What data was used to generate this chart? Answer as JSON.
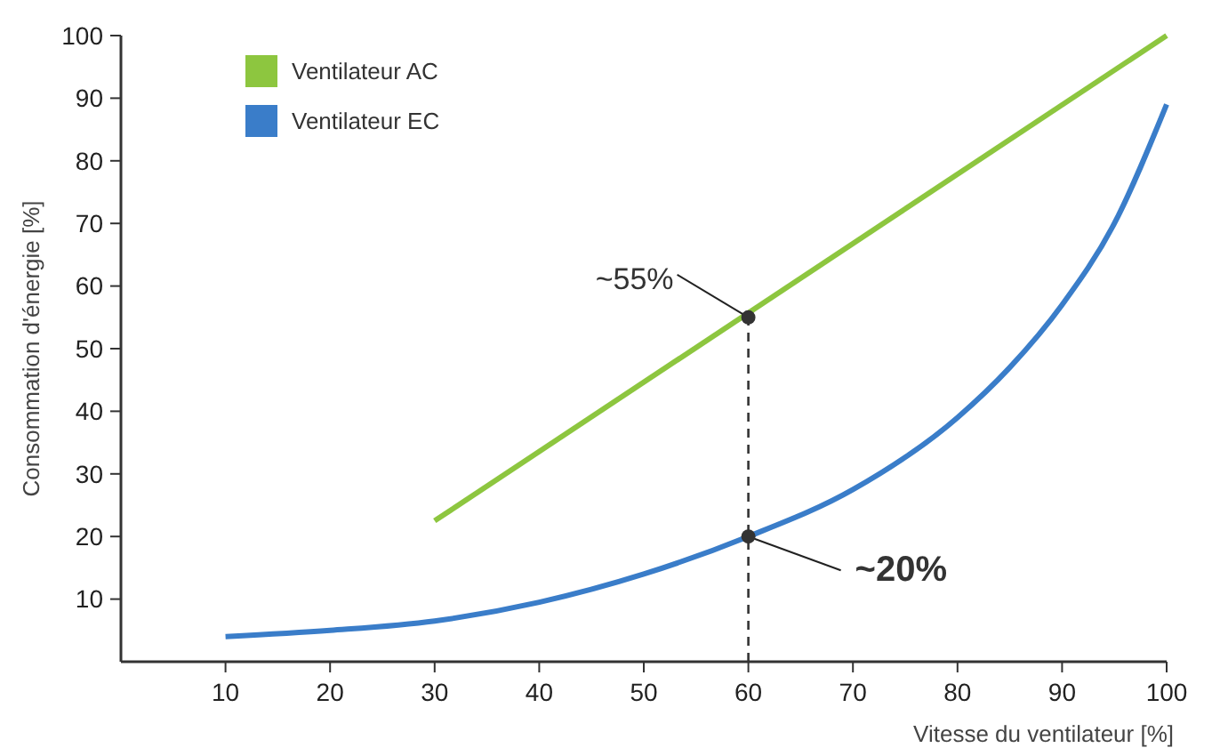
{
  "chart_data": {
    "type": "line",
    "xlabel": "Vitesse du ventilateur [%]",
    "ylabel": "Consommation d'énergie [%]",
    "xlim": [
      0,
      100
    ],
    "ylim": [
      0,
      100
    ],
    "xticks": [
      10,
      20,
      30,
      40,
      50,
      60,
      70,
      80,
      90,
      100
    ],
    "yticks": [
      10,
      20,
      30,
      40,
      50,
      60,
      70,
      80,
      90,
      100
    ],
    "grid": false,
    "legend": "top left",
    "marker": "none",
    "line_style": "solid",
    "series": [
      {
        "name": "Ventilateur AC",
        "color": "#8dc63f",
        "x": [
          30,
          100
        ],
        "values": [
          22.5,
          100
        ]
      },
      {
        "name": "Ventilateur EC",
        "color": "#3a7dc9",
        "x": [
          10,
          20,
          30,
          40,
          50,
          60,
          70,
          80,
          85,
          90,
          95,
          100
        ],
        "values": [
          4,
          5,
          6.5,
          9.5,
          14,
          20,
          27.5,
          39,
          47,
          57,
          70,
          89
        ]
      }
    ],
    "ref_lines": [
      {
        "axis": "x",
        "value": 60,
        "line_style": "dashed",
        "color": "#333333"
      }
    ],
    "annotations": [
      {
        "text": "~55%",
        "x": 60,
        "y": 55
      },
      {
        "text": "~20%",
        "x": 60,
        "y": 20
      }
    ]
  }
}
